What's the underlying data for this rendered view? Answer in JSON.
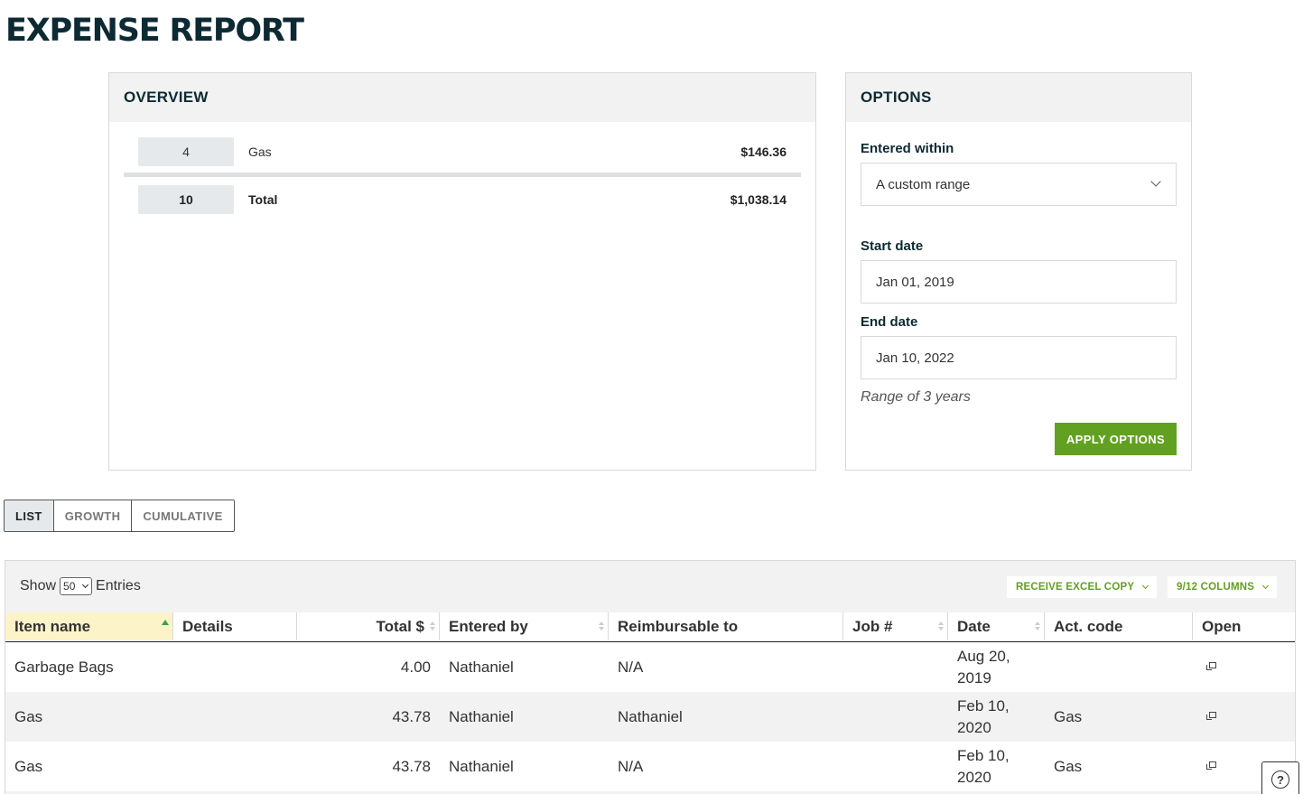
{
  "page": {
    "title": "EXPENSE REPORT"
  },
  "overview": {
    "heading": "OVERVIEW",
    "rows": [
      {
        "count": "4",
        "label": "Gas",
        "amount": "$146.36"
      }
    ],
    "total": {
      "count": "10",
      "label": "Total",
      "amount": "$1,038.14"
    }
  },
  "options": {
    "heading": "OPTIONS",
    "entered_within_label": "Entered within",
    "entered_within_value": "A custom range",
    "start_date_label": "Start date",
    "start_date_value": "Jan 01, 2019",
    "end_date_label": "End date",
    "end_date_value": "Jan 10, 2022",
    "range_hint": "Range of 3 years",
    "apply_label": "APPLY OPTIONS"
  },
  "view_tabs": [
    {
      "label": "LIST",
      "active": true
    },
    {
      "label": "GROWTH",
      "active": false
    },
    {
      "label": "CUMULATIVE",
      "active": false
    }
  ],
  "table": {
    "show_label": "Show",
    "page_size": "50",
    "entries_label": "Entries",
    "excel_button": "RECEIVE EXCEL COPY",
    "columns_button": "9/12 COLUMNS",
    "columns": [
      "Item name",
      "Details",
      "Total $",
      "Entered by",
      "Reimbursable to",
      "Job #",
      "Date",
      "Act. code",
      "Open"
    ],
    "rows": [
      {
        "item": "Garbage Bags",
        "details": "",
        "total": "4.00",
        "entered_by": "Nathaniel",
        "reimbursable_to": "N/A",
        "job": "",
        "date_line1": "Aug 20,",
        "date_line2": "2019",
        "act_code": ""
      },
      {
        "item": "Gas",
        "details": "",
        "total": "43.78",
        "entered_by": "Nathaniel",
        "reimbursable_to": "Nathaniel",
        "job": "",
        "date_line1": "Feb 10,",
        "date_line2": "2020",
        "act_code": "Gas"
      },
      {
        "item": "Gas",
        "details": "",
        "total": "43.78",
        "entered_by": "Nathaniel",
        "reimbursable_to": "N/A",
        "job": "",
        "date_line1": "Feb 10,",
        "date_line2": "2020",
        "act_code": "Gas"
      }
    ]
  },
  "help": {
    "glyph": "?"
  },
  "colors": {
    "accent_green": "#62a021",
    "title_navy": "#0d2a33",
    "sorted_header": "#fcf3c9"
  },
  "icons": {
    "dropdown": "chevron-down-icon",
    "open": "external-link-icon",
    "help": "help-circle-icon"
  }
}
